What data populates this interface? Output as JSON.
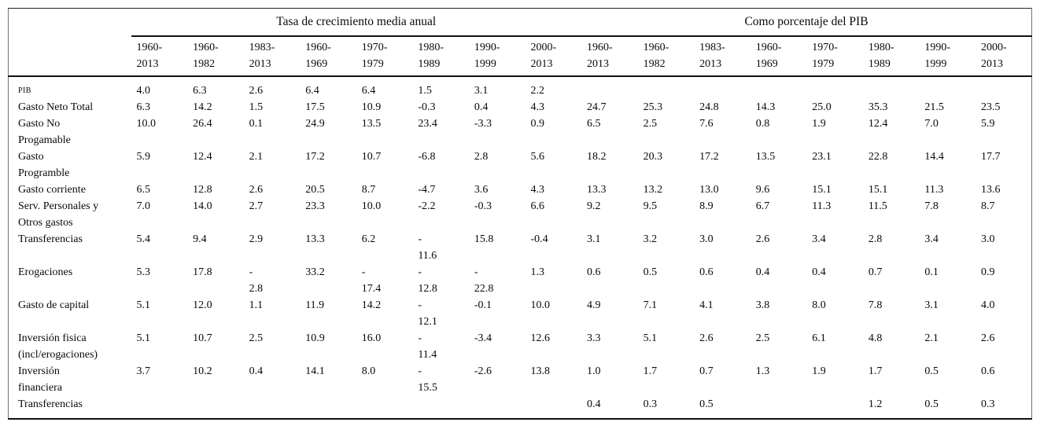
{
  "table": {
    "group_headers": [
      {
        "label": "Tasa de crecimiento media anual",
        "colspan": 8
      },
      {
        "label": "Como porcentaje del PIB",
        "colspan": 8
      }
    ],
    "period_headers": [
      "1960-\n2013",
      "1960-\n1982",
      "1983-\n2013",
      "1960-\n1969",
      "1970-\n1979",
      "1980-\n1989",
      "1990-\n1999",
      "2000-\n2013",
      "1960-\n2013",
      "1960-\n1982",
      "1983-\n2013",
      "1960-\n1969",
      "1970-\n1979",
      "1980-\n1989",
      "1990-\n1999",
      "2000-\n2013"
    ],
    "rows": [
      {
        "label": "PIB",
        "small_caps": true,
        "values": [
          "4.0",
          "6.3",
          "2.6",
          "6.4",
          "6.4",
          "1.5",
          "3.1",
          "2.2",
          "",
          "",
          "",
          "",
          "",
          "",
          "",
          ""
        ]
      },
      {
        "label": "Gasto Neto Total",
        "values": [
          "6.3",
          "14.2",
          "1.5",
          "17.5",
          "10.9",
          "-0.3",
          "0.4",
          "4.3",
          "24.7",
          "25.3",
          "24.8",
          "14.3",
          "25.0",
          "35.3",
          "21.5",
          "23.5"
        ]
      },
      {
        "label": "Gasto No\nProgamable",
        "values": [
          "10.0",
          "26.4",
          "0.1",
          "24.9",
          "13.5",
          "23.4",
          "-3.3",
          "0.9",
          "6.5",
          "2.5",
          "7.6",
          "0.8",
          "1.9",
          "12.4",
          "7.0",
          "5.9"
        ]
      },
      {
        "label": "Gasto\nProgramble",
        "values": [
          "5.9",
          "12.4",
          "2.1",
          "17.2",
          "10.7",
          "-6.8",
          "2.8",
          "5.6",
          "18.2",
          "20.3",
          "17.2",
          "13.5",
          "23.1",
          "22.8",
          "14.4",
          "17.7"
        ]
      },
      {
        "label": "Gasto corriente",
        "values": [
          "6.5",
          "12.8",
          "2.6",
          "20.5",
          "8.7",
          "-4.7",
          "3.6",
          "4.3",
          "13.3",
          "13.2",
          "13.0",
          "9.6",
          "15.1",
          "15.1",
          "11.3",
          "13.6"
        ]
      },
      {
        "label": "Serv. Personales y\nOtros gastos",
        "values": [
          "7.0",
          "14.0",
          "2.7",
          "23.3",
          "10.0",
          "-2.2",
          "-0.3",
          "6.6",
          "9.2",
          "9.5",
          "8.9",
          "6.7",
          "11.3",
          "11.5",
          "7.8",
          "8.7"
        ]
      },
      {
        "label": "Transferencias",
        "values": [
          "5.4",
          "9.4",
          "2.9",
          "13.3",
          "6.2",
          "-\n11.6",
          "15.8",
          "-0.4",
          "3.1",
          "3.2",
          "3.0",
          "2.6",
          "3.4",
          "2.8",
          "3.4",
          "3.0"
        ]
      },
      {
        "label": "Erogaciones",
        "values": [
          "5.3",
          "17.8",
          "-\n2.8",
          "33.2",
          "-\n17.4",
          "-\n12.8",
          "-\n22.8",
          "1.3",
          "0.6",
          "0.5",
          "0.6",
          "0.4",
          "0.4",
          "0.7",
          "0.1",
          "0.9"
        ]
      },
      {
        "label": "Gasto de capital",
        "values": [
          "5.1",
          "12.0",
          "1.1",
          "11.9",
          "14.2",
          "-\n12.1",
          "-0.1",
          "10.0",
          "4.9",
          "7.1",
          "4.1",
          "3.8",
          "8.0",
          "7.8",
          "3.1",
          "4.0"
        ]
      },
      {
        "label": "Inversión fisica\n(incl/erogaciones)",
        "values": [
          "5.1",
          "10.7",
          "2.5",
          "10.9",
          "16.0",
          "-\n11.4",
          "-3.4",
          "12.6",
          "3.3",
          "5.1",
          "2.6",
          "2.5",
          "6.1",
          "4.8",
          "2.1",
          "2.6"
        ]
      },
      {
        "label": "Inversión\nfinanciera",
        "values": [
          "3.7",
          "10.2",
          "0.4",
          "14.1",
          "8.0",
          "-\n15.5",
          "-2.6",
          "13.8",
          "1.0",
          "1.7",
          "0.7",
          "1.3",
          "1.9",
          "1.7",
          "0.5",
          "0.6"
        ]
      },
      {
        "label": "Transferencias",
        "values": [
          "",
          "",
          "",
          "",
          "",
          "",
          "",
          "",
          "0.4",
          "0.3",
          "0.5",
          "",
          "",
          "1.2",
          "0.5",
          "0.3"
        ]
      }
    ]
  }
}
